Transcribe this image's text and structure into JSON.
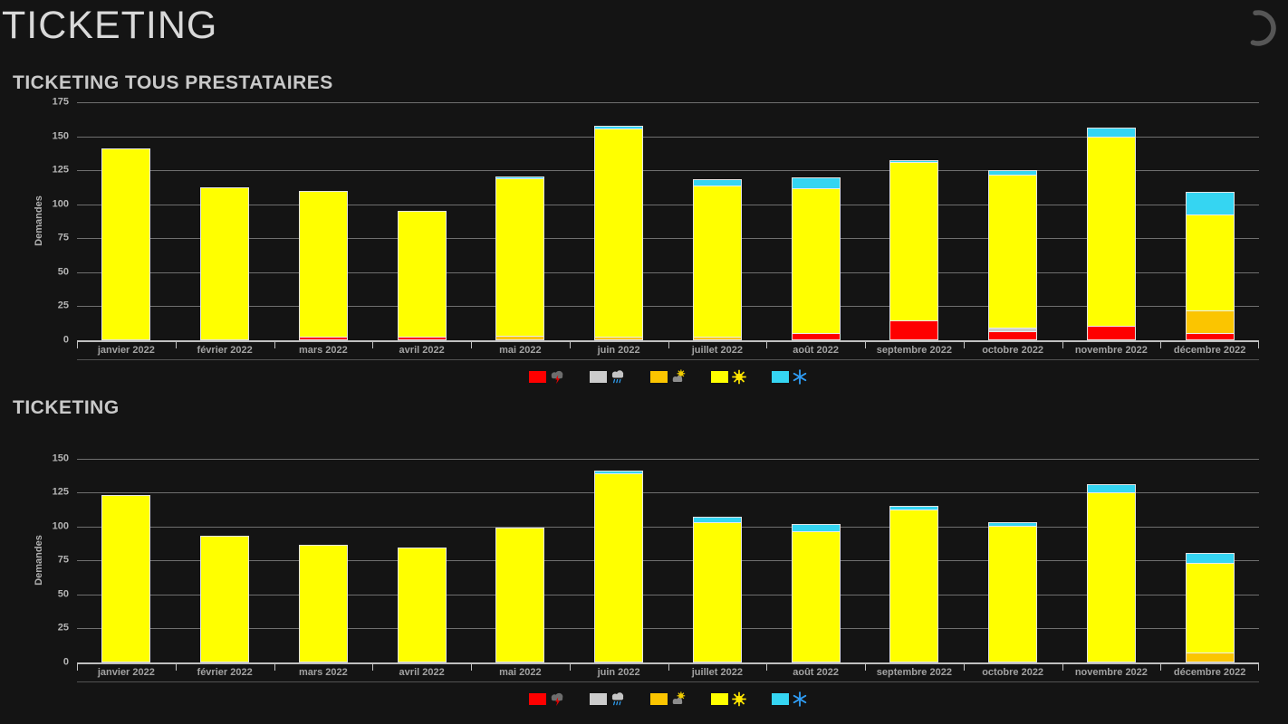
{
  "page": {
    "title": "TICKETING"
  },
  "chart_data": [
    {
      "type": "bar",
      "stacked": true,
      "title": "TICKETING TOUS PRESTATAIRES",
      "xlabel": "",
      "ylabel": "Demandes",
      "ylim": [
        0,
        175
      ],
      "ytick_step": 25,
      "yticks": [
        0,
        25,
        50,
        75,
        100,
        125,
        150,
        175
      ],
      "grid": "horizontal",
      "legend_position": "bottom-center",
      "categories": [
        "janvier 2022",
        "février 2022",
        "mars 2022",
        "avril 2022",
        "mai 2022",
        "juin 2022",
        "juillet 2022",
        "août 2022",
        "septembre 2022",
        "octobre 2022",
        "novembre 2022",
        "décembre 2022"
      ],
      "series": [
        {
          "name": "storm",
          "icon": "storm-icon",
          "color": "#fe0000",
          "values": [
            0,
            0,
            1,
            1,
            0,
            0,
            0,
            4,
            13,
            5,
            9,
            4
          ]
        },
        {
          "name": "rain",
          "icon": "rain-icon",
          "color": "#cccccc",
          "values": [
            0,
            0,
            0,
            0,
            0,
            0,
            0,
            0,
            0,
            2,
            0,
            0
          ]
        },
        {
          "name": "partly-cloudy",
          "icon": "partly-cloudy-icon",
          "color": "#fbc500",
          "values": [
            0,
            0,
            0,
            0,
            2,
            1,
            1,
            0,
            0,
            0,
            0,
            16
          ]
        },
        {
          "name": "sun",
          "icon": "sun-icon",
          "color": "#ffff00",
          "values": [
            140,
            111,
            107,
            92,
            115,
            153,
            111,
            106,
            116,
            112,
            139,
            70
          ]
        },
        {
          "name": "snow",
          "icon": "snowflake-icon",
          "color": "#35d5f2",
          "values": [
            0,
            0,
            0,
            0,
            1,
            1,
            4,
            7,
            1,
            3,
            6,
            16
          ]
        }
      ],
      "totals": [
        140,
        111,
        108,
        93,
        118,
        155,
        116,
        117,
        130,
        122,
        154,
        106
      ]
    },
    {
      "type": "bar",
      "stacked": true,
      "title": "TICKETING",
      "xlabel": "",
      "ylabel": "Demandes",
      "ylim": [
        0,
        150
      ],
      "ytick_step": 25,
      "yticks": [
        0,
        25,
        50,
        75,
        100,
        125,
        150
      ],
      "grid": "horizontal",
      "legend_position": "bottom-center",
      "categories": [
        "janvier 2022",
        "février 2022",
        "mars 2022",
        "avril 2022",
        "mai 2022",
        "juin 2022",
        "juillet 2022",
        "août 2022",
        "septembre 2022",
        "octobre 2022",
        "novembre 2022",
        "décembre 2022"
      ],
      "series": [
        {
          "name": "storm",
          "icon": "storm-icon",
          "color": "#fe0000",
          "values": [
            0,
            0,
            0,
            0,
            0,
            0,
            0,
            0,
            0,
            0,
            0,
            0
          ]
        },
        {
          "name": "rain",
          "icon": "rain-icon",
          "color": "#cccccc",
          "values": [
            0,
            0,
            0,
            0,
            0,
            0,
            0,
            0,
            0,
            0,
            0,
            0
          ]
        },
        {
          "name": "partly-cloudy",
          "icon": "partly-cloudy-icon",
          "color": "#fbc500",
          "values": [
            0,
            0,
            0,
            0,
            0,
            0,
            0,
            0,
            0,
            0,
            0,
            6
          ]
        },
        {
          "name": "sun",
          "icon": "sun-icon",
          "color": "#ffff00",
          "values": [
            122,
            92,
            85,
            83,
            98,
            138,
            102,
            95,
            111,
            99,
            124,
            65
          ]
        },
        {
          "name": "snow",
          "icon": "snowflake-icon",
          "color": "#35d5f2",
          "values": [
            0,
            0,
            0,
            0,
            0,
            1,
            3,
            5,
            2,
            2,
            5,
            7
          ]
        }
      ],
      "totals": [
        122,
        92,
        85,
        83,
        98,
        139,
        105,
        100,
        113,
        101,
        129,
        78
      ]
    }
  ],
  "colors": {
    "background": "#141414",
    "title_text": "#d9d9d9",
    "chart_title_text": "#c9c9c9",
    "axis_line": "#c0c0c0",
    "gridline": "#6f6f6f",
    "tick_text": "#b3b3b3",
    "bar_outline": "#e2e2e2",
    "spinner": "#565656"
  }
}
